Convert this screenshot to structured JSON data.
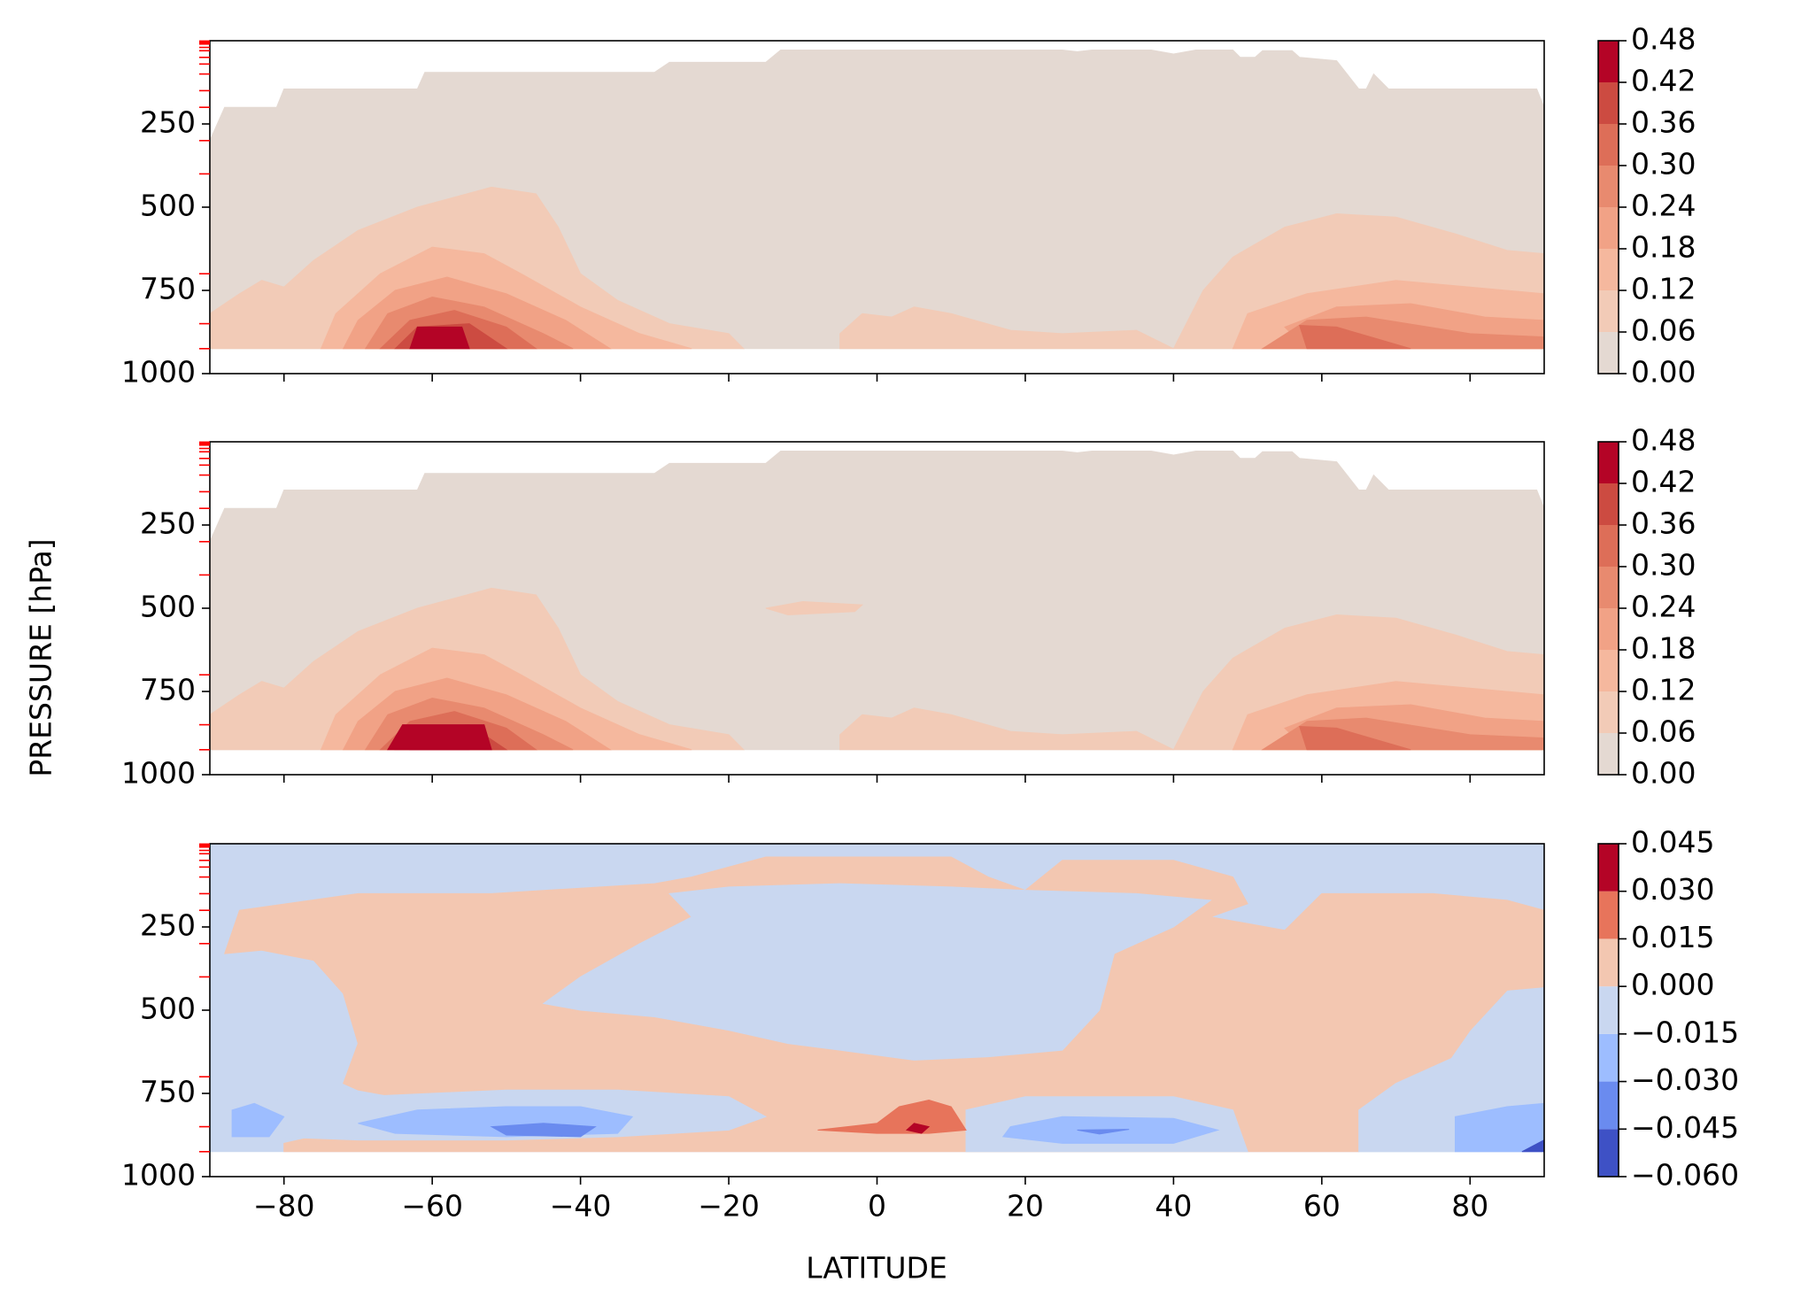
{
  "chart_data": {
    "type": "contour",
    "xlabel": "LATITUDE",
    "ylabel": "PRESSURE [hPa]",
    "xlim": [
      -90,
      90
    ],
    "xticks": [
      {
        "value": -80,
        "label": "−80"
      },
      {
        "value": -60,
        "label": "−60"
      },
      {
        "value": -40,
        "label": "−40"
      },
      {
        "value": -20,
        "label": "−20"
      },
      0,
      20,
      40,
      60,
      80
    ],
    "ylim": [
      1000,
      0
    ],
    "yticks": [
      250,
      500,
      750,
      1000
    ],
    "level_ticks": [
      1,
      2,
      3,
      5,
      7,
      10,
      20,
      30,
      50,
      70,
      100,
      150,
      200,
      300,
      400,
      700,
      850,
      925
    ],
    "level_tick_color": "#ff0000",
    "panels": [
      {
        "colors": [
          "#e4d9d2",
          "#f2cbb7",
          "#f5b89e",
          "#f1a286",
          "#e88a6f",
          "#dd6e58",
          "#cc4b41",
          "#b40426"
        ],
        "colorbar_ticks": [
          {
            "value": 0,
            "label": "0.00"
          },
          0.06,
          0.12,
          0.18,
          0.24,
          {
            "value": 0.3,
            "label": "0.30"
          },
          0.36,
          0.42,
          0.48
        ]
      },
      {
        "colors": [
          "#e4d9d2",
          "#f2cbb7",
          "#f5b89e",
          "#f1a286",
          "#e88a6f",
          "#dd6e58",
          "#cc4b41",
          "#b40426"
        ],
        "colorbar_ticks": [
          {
            "value": 0,
            "label": "0.00"
          },
          0.06,
          0.12,
          0.18,
          0.24,
          {
            "value": 0.3,
            "label": "0.30"
          },
          0.36,
          0.42,
          0.48
        ]
      },
      {
        "colors": [
          "#3e51c5",
          "#6a8bef",
          "#9dbdff",
          "#c9d7f0",
          "#f3c7b1",
          "#e7745b",
          "#b40426"
        ],
        "colorbar_ticks": [
          {
            "value": -0.06,
            "label": "−0.060"
          },
          {
            "value": -0.045,
            "label": "−0.045"
          },
          {
            "value": -0.03,
            "label": "−0.030"
          },
          {
            "value": -0.015,
            "label": "−0.015"
          },
          {
            "value": 0,
            "label": "0.000"
          },
          0.015,
          {
            "value": 0.03,
            "label": "0.030"
          },
          0.045
        ]
      }
    ]
  }
}
